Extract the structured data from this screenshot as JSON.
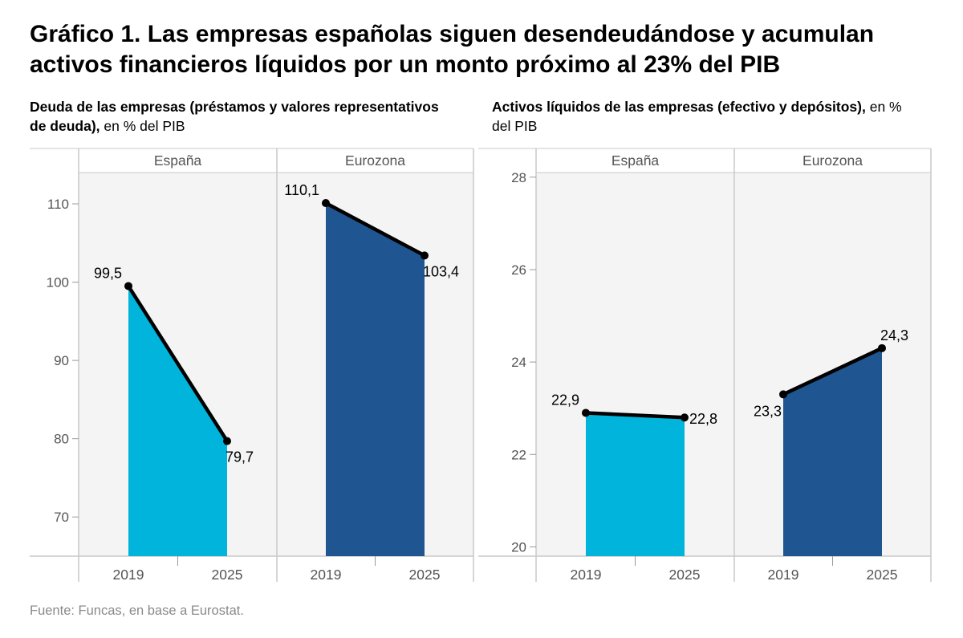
{
  "title": {
    "bold": "Gráfico 1.",
    "rest": "Las empresas españolas siguen desendeudándose y acumulan activos financieros líquidos por un monto próximo al 23% del PIB"
  },
  "source": "Fuente: Funcas, en base a Eurostat.",
  "colors": {
    "spain": "#00b4dc",
    "eurozone": "#1f5692",
    "panel_bg": "#f4f4f4",
    "line": "#000000"
  },
  "chart_data": [
    {
      "type": "area",
      "subtitle_bold": "Deuda de las empresas (préstamos y valores representativos de deuda),",
      "subtitle_rest": "en % del PIB",
      "ylim": [
        65,
        114
      ],
      "yticks": [
        "70",
        "80",
        "90",
        "100",
        "110"
      ],
      "ytick_values": [
        70,
        80,
        90,
        100,
        110
      ],
      "panels": [
        {
          "name": "España",
          "color_key": "spain",
          "x": [
            "2019",
            "2025"
          ],
          "values": [
            99.5,
            79.7
          ],
          "labels": [
            "99,5",
            "79,7"
          ]
        },
        {
          "name": "Eurozona",
          "color_key": "eurozone",
          "x": [
            "2019",
            "2025"
          ],
          "values": [
            110.1,
            103.4
          ],
          "labels": [
            "110,1",
            "103,4"
          ]
        }
      ]
    },
    {
      "type": "area",
      "subtitle_bold": "Activos líquidos de las empresas (efectivo y depósitos),",
      "subtitle_rest": "en % del PIB",
      "ylim": [
        19.8,
        28.1
      ],
      "yticks": [
        "20",
        "22",
        "24",
        "26",
        "28"
      ],
      "ytick_values": [
        20,
        22,
        24,
        26,
        28
      ],
      "panels": [
        {
          "name": "España",
          "color_key": "spain",
          "x": [
            "2019",
            "2025"
          ],
          "values": [
            22.9,
            22.8
          ],
          "labels": [
            "22,9",
            "22,8"
          ]
        },
        {
          "name": "Eurozona",
          "color_key": "eurozone",
          "x": [
            "2019",
            "2025"
          ],
          "values": [
            23.3,
            24.3
          ],
          "labels": [
            "23,3",
            "24,3"
          ]
        }
      ]
    }
  ]
}
